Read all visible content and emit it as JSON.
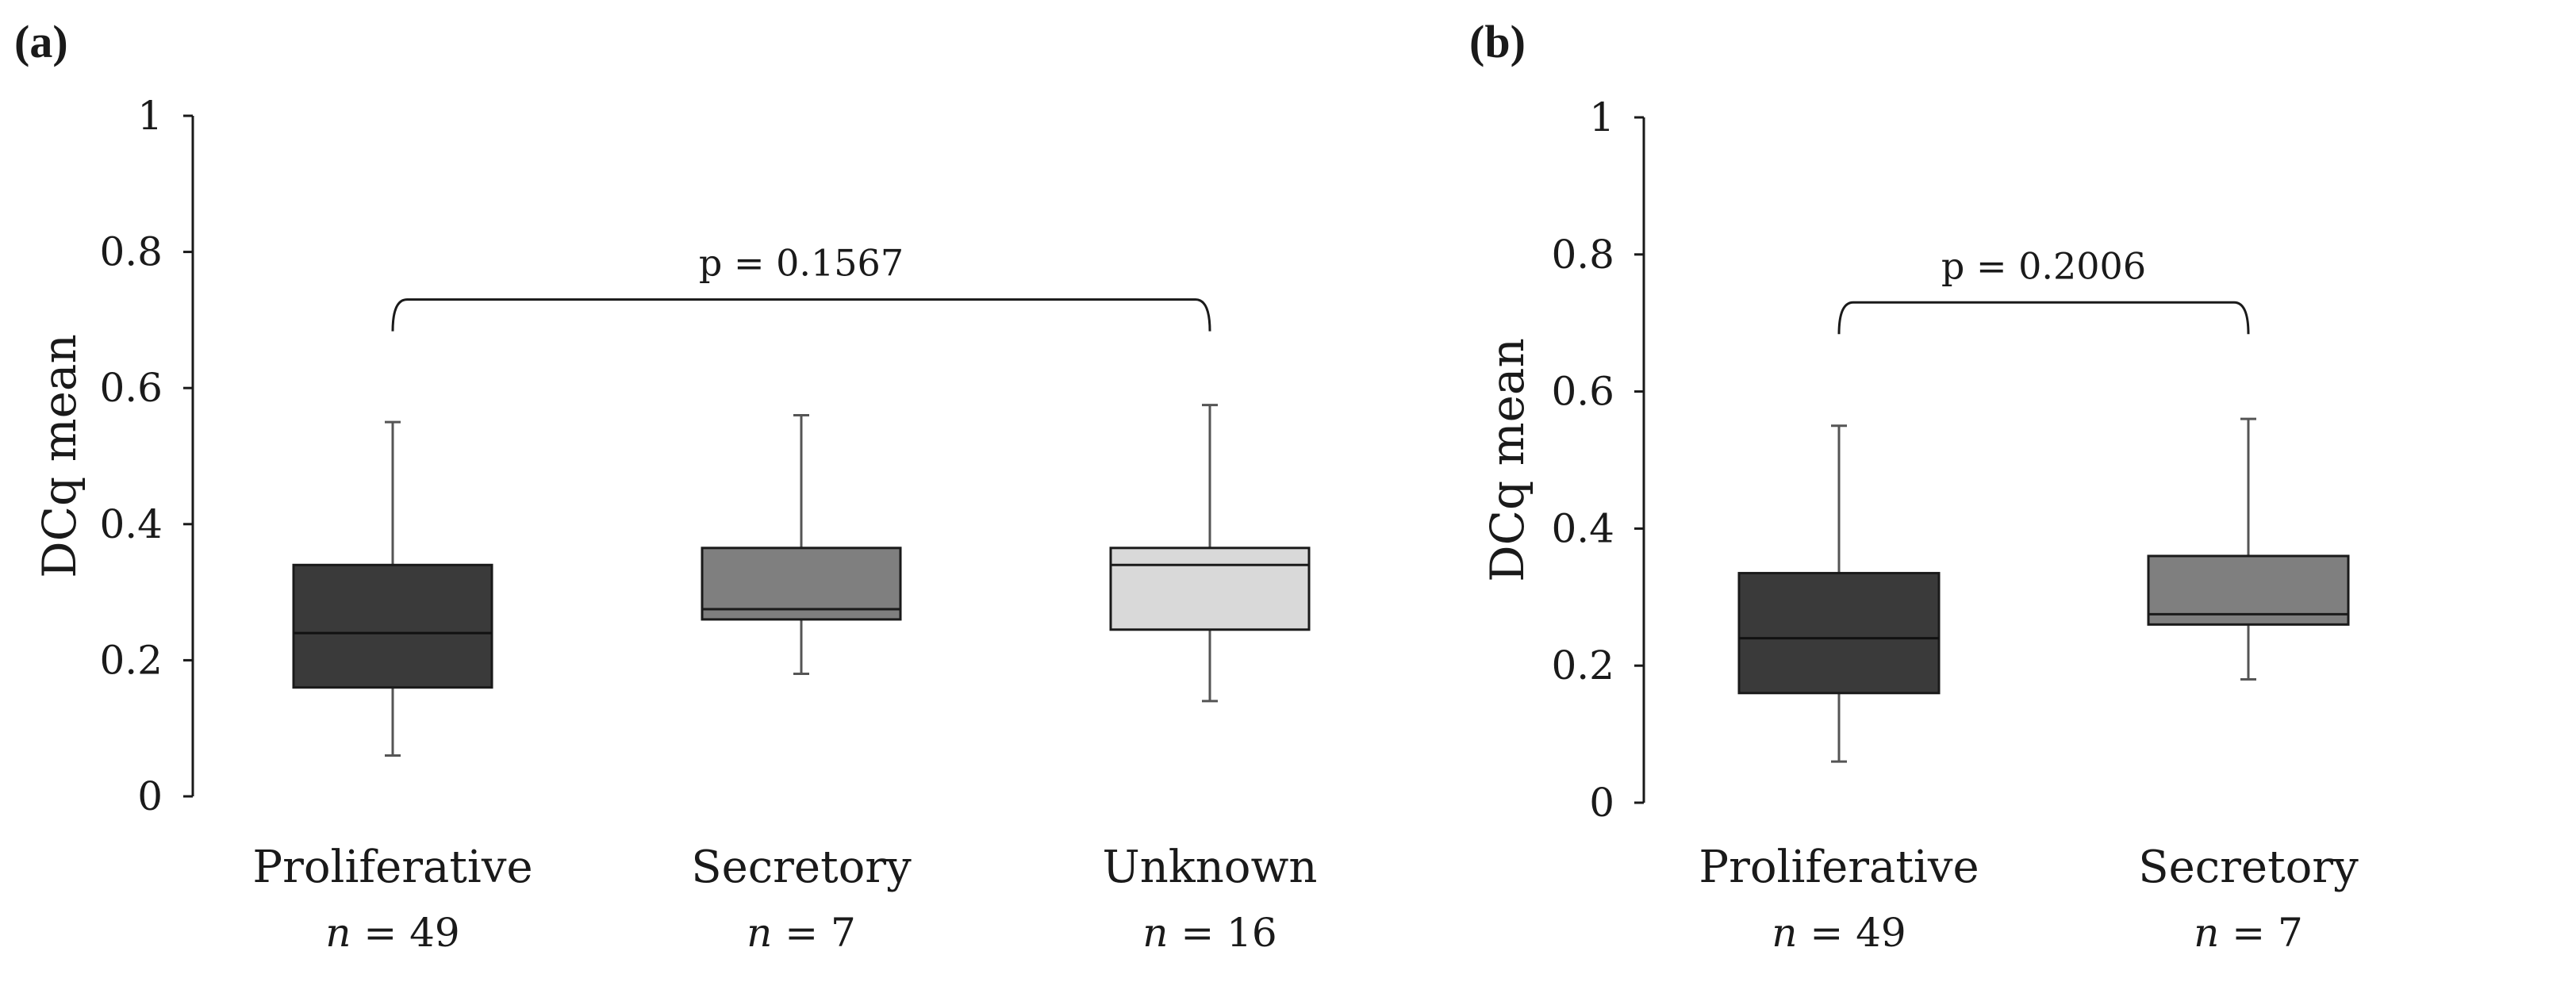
{
  "chart_data": [
    {
      "type": "boxplot",
      "panel_label": "(a)",
      "ylabel": "DCq mean",
      "ylim": [
        0,
        1
      ],
      "yticks": [
        "0",
        "0.2",
        "0.4",
        "0.6",
        "0.8",
        "1"
      ],
      "yticks_values": [
        0,
        0.2,
        0.4,
        0.6,
        0.8,
        1
      ],
      "n_prefix": "n",
      "categories": [
        {
          "name": "Proliferative",
          "n_value": "= 49",
          "min": 0.06,
          "q1": 0.16,
          "median": 0.24,
          "q3": 0.34,
          "max": 0.55,
          "color": "#3a3a3a",
          "median_color": "#111111"
        },
        {
          "name": "Secretory",
          "n_value": "= 7",
          "min": 0.18,
          "q1": 0.26,
          "median": 0.275,
          "q3": 0.365,
          "max": 0.56,
          "color": "#7f7f7f",
          "median_color": "#1a1a1a"
        },
        {
          "name": "Unknown",
          "n_value": "= 16",
          "min": 0.14,
          "q1": 0.245,
          "median": 0.34,
          "q3": 0.365,
          "max": 0.575,
          "color": "#d9d9d9",
          "median_color": "#1a1a1a"
        }
      ],
      "comparison": {
        "text": "p = 0.1567",
        "from": 0,
        "to": 2,
        "y": 0.73
      }
    },
    {
      "type": "boxplot",
      "panel_label": "(b)",
      "ylabel": "DCq mean",
      "ylim": [
        0,
        1
      ],
      "yticks": [
        "0",
        "0.2",
        "0.4",
        "0.6",
        "0.8",
        "1"
      ],
      "yticks_values": [
        0,
        0.2,
        0.4,
        0.6,
        0.8,
        1
      ],
      "n_prefix": "n",
      "categories": [
        {
          "name": "Proliferative",
          "n_value": "= 49",
          "min": 0.06,
          "q1": 0.16,
          "median": 0.24,
          "q3": 0.335,
          "max": 0.55,
          "color": "#3a3a3a",
          "median_color": "#111111"
        },
        {
          "name": "Secretory",
          "n_value": "= 7",
          "min": 0.18,
          "q1": 0.26,
          "median": 0.275,
          "q3": 0.36,
          "max": 0.56,
          "color": "#7f7f7f",
          "median_color": "#1a1a1a"
        }
      ],
      "comparison": {
        "text": "p = 0.2006",
        "from": 0,
        "to": 1,
        "y": 0.73
      }
    }
  ]
}
